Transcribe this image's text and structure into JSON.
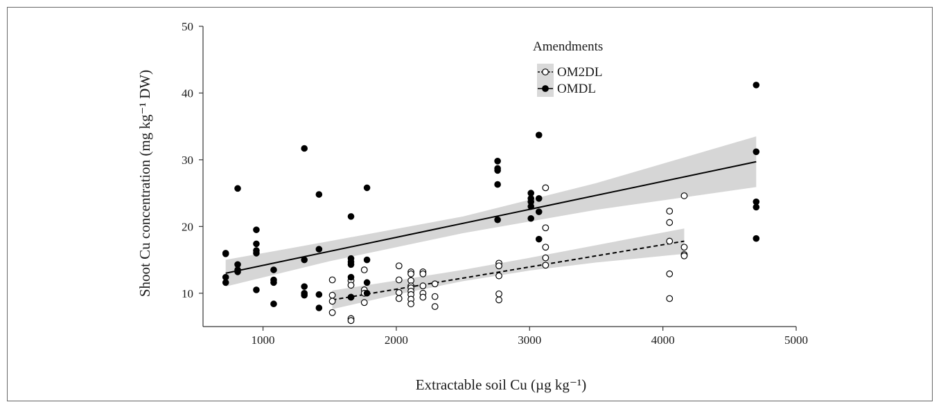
{
  "chart_data": {
    "type": "scatter",
    "title": "",
    "xlabel": "Extractable soil Cu (µg kg⁻¹)",
    "ylabel": "Shoot Cu concentration (mg kg⁻¹ DW)",
    "xlim": [
      550,
      5000
    ],
    "ylim": [
      5,
      50
    ],
    "x_ticks": [
      1000,
      2000,
      3000,
      4000,
      5000
    ],
    "y_ticks": [
      10,
      20,
      30,
      40,
      50
    ],
    "grid": false,
    "legend": {
      "title": "Amendments",
      "position": "top-center",
      "entries": [
        "OM2DL",
        "OMDL"
      ]
    },
    "series": [
      {
        "name": "OM2DL",
        "marker": "open-circle",
        "color": "#000000",
        "fit_line": {
          "style": "dashed",
          "x": [
            1520,
            4160
          ],
          "y": [
            9.0,
            17.8
          ]
        },
        "confidence_band": {
          "x": [
            1520,
            2000,
            2500,
            3000,
            3500,
            4160
          ],
          "lower": [
            7.6,
            9.8,
            11.8,
            13.4,
            14.6,
            15.9
          ],
          "upper": [
            10.4,
            11.9,
            13.5,
            15.3,
            17.2,
            19.7
          ]
        },
        "points": [
          [
            1520,
            12.0
          ],
          [
            1520,
            9.7
          ],
          [
            1520,
            8.8
          ],
          [
            1520,
            7.1
          ],
          [
            1660,
            11.9
          ],
          [
            1660,
            11.2
          ],
          [
            1660,
            9.4
          ],
          [
            1660,
            6.2
          ],
          [
            1660,
            5.9
          ],
          [
            1760,
            13.5
          ],
          [
            1760,
            10.5
          ],
          [
            1760,
            10.0
          ],
          [
            1760,
            8.6
          ],
          [
            2020,
            14.1
          ],
          [
            2020,
            12.0
          ],
          [
            2020,
            10.1
          ],
          [
            2020,
            9.2
          ],
          [
            2110,
            13.2
          ],
          [
            2110,
            12.9
          ],
          [
            2110,
            11.9
          ],
          [
            2110,
            11.1
          ],
          [
            2110,
            10.8
          ],
          [
            2110,
            10.3
          ],
          [
            2110,
            9.8
          ],
          [
            2110,
            9.1
          ],
          [
            2110,
            8.4
          ],
          [
            2200,
            13.2
          ],
          [
            2200,
            12.9
          ],
          [
            2200,
            11.1
          ],
          [
            2200,
            10.0
          ],
          [
            2200,
            9.4
          ],
          [
            2290,
            11.4
          ],
          [
            2290,
            9.5
          ],
          [
            2290,
            8.0
          ],
          [
            2770,
            14.5
          ],
          [
            2770,
            14.1
          ],
          [
            2770,
            12.6
          ],
          [
            2770,
            9.9
          ],
          [
            2770,
            9.0
          ],
          [
            3120,
            25.8
          ],
          [
            3120,
            19.8
          ],
          [
            3120,
            16.9
          ],
          [
            3120,
            15.3
          ],
          [
            3120,
            14.2
          ],
          [
            4050,
            22.3
          ],
          [
            4050,
            20.6
          ],
          [
            4050,
            17.8
          ],
          [
            4050,
            12.9
          ],
          [
            4050,
            9.2
          ],
          [
            4160,
            24.6
          ],
          [
            4160,
            16.9
          ],
          [
            4160,
            15.8
          ],
          [
            4160,
            15.6
          ]
        ]
      },
      {
        "name": "OMDL",
        "marker": "filled-circle",
        "color": "#000000",
        "fit_line": {
          "style": "solid",
          "x": [
            720,
            4700
          ],
          "y": [
            13.0,
            29.7
          ]
        },
        "confidence_band": {
          "x": [
            720,
            1500,
            2500,
            3500,
            4700
          ],
          "lower": [
            11.0,
            14.8,
            19.0,
            22.5,
            25.9
          ],
          "upper": [
            15.0,
            17.8,
            21.5,
            26.5,
            33.5
          ]
        },
        "points": [
          [
            720,
            16.0
          ],
          [
            720,
            15.9
          ],
          [
            720,
            12.4
          ],
          [
            720,
            11.6
          ],
          [
            810,
            25.7
          ],
          [
            810,
            14.3
          ],
          [
            810,
            13.5
          ],
          [
            810,
            13.2
          ],
          [
            950,
            19.5
          ],
          [
            950,
            17.4
          ],
          [
            950,
            16.4
          ],
          [
            950,
            16.0
          ],
          [
            950,
            10.5
          ],
          [
            1080,
            13.5
          ],
          [
            1080,
            12.0
          ],
          [
            1080,
            11.6
          ],
          [
            1080,
            8.4
          ],
          [
            1310,
            31.7
          ],
          [
            1310,
            15.0
          ],
          [
            1310,
            11.0
          ],
          [
            1310,
            10.0
          ],
          [
            1310,
            9.7
          ],
          [
            1420,
            24.8
          ],
          [
            1420,
            16.6
          ],
          [
            1420,
            9.8
          ],
          [
            1420,
            7.8
          ],
          [
            1660,
            21.5
          ],
          [
            1660,
            15.2
          ],
          [
            1660,
            14.7
          ],
          [
            1660,
            14.3
          ],
          [
            1660,
            12.4
          ],
          [
            1660,
            9.4
          ],
          [
            1780,
            25.8
          ],
          [
            1780,
            15.0
          ],
          [
            1780,
            11.6
          ],
          [
            1780,
            10.0
          ],
          [
            2760,
            29.8
          ],
          [
            2760,
            28.7
          ],
          [
            2760,
            28.4
          ],
          [
            2760,
            26.3
          ],
          [
            2760,
            21.0
          ],
          [
            3010,
            25.0
          ],
          [
            3010,
            24.2
          ],
          [
            3010,
            23.7
          ],
          [
            3010,
            23.0
          ],
          [
            3010,
            21.2
          ],
          [
            3070,
            33.7
          ],
          [
            3070,
            24.2
          ],
          [
            3070,
            22.2
          ],
          [
            3070,
            18.1
          ],
          [
            4700,
            41.2
          ],
          [
            4700,
            31.2
          ],
          [
            4700,
            23.7
          ],
          [
            4700,
            22.9
          ],
          [
            4700,
            18.2
          ]
        ]
      }
    ]
  }
}
